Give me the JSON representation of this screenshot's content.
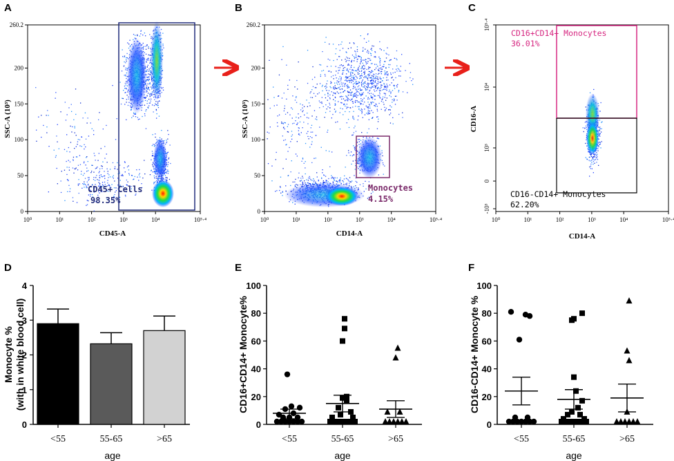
{
  "panels": {
    "A": "A",
    "B": "B",
    "C": "C",
    "D": "D",
    "E": "E",
    "F": "F"
  },
  "colors": {
    "gate_navy": "#1f2a7a",
    "gate_purple": "#7a2a6a",
    "gate_magenta": "#d62680",
    "arrow_red": "#e8201a",
    "bar_lt55": "#000000",
    "bar_55_65": "#5a5a5a",
    "bar_gt65": "#d2d2d2"
  },
  "chart_data": [
    {
      "id": "A",
      "type": "scatter",
      "xlabel": "CD45-A",
      "ylabel_main": "SSC-A",
      "ylabel_unit": "(10³)",
      "x_tick_labels": [
        "10⁰",
        "10¹",
        "10²",
        "10³",
        "10⁴",
        "10⁵·⁴"
      ],
      "y_tick_labels": [
        "0",
        "50",
        "100",
        "150",
        "200",
        "260.2"
      ],
      "y_ticks": [
        0,
        50,
        100,
        150,
        200,
        260.2
      ],
      "gate_label": "CD45+ Cells",
      "gate_percent": "98.35%",
      "gate_log_x_range": [
        2.6,
        4.8
      ],
      "gate_y_range": [
        3,
        260
      ]
    },
    {
      "id": "B",
      "type": "scatter",
      "xlabel": "CD14-A",
      "ylabel_main": "SSC-A",
      "ylabel_unit": "(10³)",
      "x_tick_labels": [
        "10⁰",
        "10¹",
        "10²",
        "10³",
        "10⁴",
        "10⁵·⁴"
      ],
      "y_tick_labels": [
        "0",
        "50",
        "100",
        "150",
        "200",
        "260.2"
      ],
      "y_ticks": [
        0,
        50,
        100,
        150,
        200,
        260.2
      ],
      "gate_label": "Monocytes",
      "gate_percent": "4.15%",
      "gate_log_x_range": [
        2.95,
        3.95
      ],
      "gate_y_range": [
        47,
        105
      ]
    },
    {
      "id": "C",
      "type": "scatter",
      "xlabel": "CD14-A",
      "ylabel_main": "CD16-A",
      "x_tick_labels": [
        "10⁰",
        "10¹",
        "10²",
        "10³",
        "10⁴",
        "10⁵·⁴"
      ],
      "y_tick_labels": [
        "10⁵·⁴",
        "10⁴",
        "10³",
        "0",
        "-10³"
      ],
      "gate_upper_label": "CD16+CD14+ Monocytes",
      "gate_upper_percent": "36.01%",
      "gate_lower_label": "CD16-CD14+ Monocytes",
      "gate_lower_percent": "62.20%"
    },
    {
      "id": "D",
      "type": "bar",
      "categories": [
        "<55",
        "55-65",
        ">65"
      ],
      "values": [
        2.9,
        2.32,
        2.7
      ],
      "errors": [
        0.42,
        0.32,
        0.42
      ],
      "xlabel": "age",
      "ylabel_line1": "Monocyte %",
      "ylabel_line2": "(with in white blood cell)",
      "ylim": [
        0,
        4
      ],
      "y_ticks": [
        0,
        1,
        2,
        3,
        4
      ],
      "y_tick_labels": [
        "0",
        "1",
        "2",
        "3",
        "4"
      ]
    },
    {
      "id": "E",
      "type": "scatter",
      "categories": [
        "<55",
        "55-65",
        ">65"
      ],
      "xlabel": "age",
      "ylabel": "CD16+CD14+ Monocyte%",
      "ylim": [
        0,
        100
      ],
      "y_ticks": [
        0,
        20,
        40,
        60,
        80,
        100
      ],
      "y_tick_labels": [
        "0",
        "20",
        "40",
        "60",
        "80",
        "100"
      ],
      "series": [
        {
          "name": "<55",
          "marker": "circle",
          "mean": 8,
          "sem_low": 4,
          "sem_high": 11,
          "points": [
            [
              -0.3,
              2
            ],
            [
              -0.2,
              2
            ],
            [
              -0.1,
              2
            ],
            [
              0.0,
              2
            ],
            [
              0.1,
              2
            ],
            [
              0.2,
              2
            ],
            [
              0.3,
              2
            ],
            [
              -0.15,
              5
            ],
            [
              0.0,
              5
            ],
            [
              0.2,
              5
            ],
            [
              -0.25,
              7
            ],
            [
              0.1,
              8
            ],
            [
              -0.1,
              11
            ],
            [
              0.25,
              12
            ],
            [
              0.05,
              13
            ],
            [
              -0.05,
              36
            ]
          ]
        },
        {
          "name": "55-65",
          "marker": "square",
          "mean": 15,
          "sem_low": 9,
          "sem_high": 21,
          "points": [
            [
              -0.3,
              2
            ],
            [
              -0.2,
              2
            ],
            [
              -0.1,
              2
            ],
            [
              0.0,
              2
            ],
            [
              0.1,
              2
            ],
            [
              0.2,
              2
            ],
            [
              0.3,
              2
            ],
            [
              -0.25,
              5
            ],
            [
              0.25,
              5
            ],
            [
              -0.05,
              7
            ],
            [
              0.2,
              9
            ],
            [
              -0.1,
              12
            ],
            [
              0.1,
              17
            ],
            [
              0.0,
              19
            ],
            [
              0.1,
              20
            ],
            [
              0.0,
              60
            ],
            [
              0.05,
              69
            ],
            [
              0.05,
              76
            ]
          ]
        },
        {
          "name": ">65",
          "marker": "triangle",
          "mean": 11,
          "sem_low": 5,
          "sem_high": 17,
          "points": [
            [
              -0.25,
              2
            ],
            [
              -0.15,
              2
            ],
            [
              -0.05,
              2
            ],
            [
              0.05,
              2
            ],
            [
              0.15,
              2
            ],
            [
              0.25,
              2
            ],
            [
              -0.2,
              9
            ],
            [
              0.1,
              9
            ],
            [
              0.0,
              48
            ],
            [
              0.05,
              55
            ]
          ]
        }
      ]
    },
    {
      "id": "F",
      "type": "scatter",
      "categories": [
        "<55",
        "55-65",
        ">65"
      ],
      "xlabel": "age",
      "ylabel": "CD16-CD14+ Monocyte %",
      "ylim": [
        0,
        100
      ],
      "y_ticks": [
        0,
        20,
        40,
        60,
        80,
        100
      ],
      "y_tick_labels": [
        "0",
        "20",
        "40",
        "60",
        "80",
        "100"
      ],
      "series": [
        {
          "name": "<55",
          "marker": "circle",
          "mean": 24,
          "sem_low": 14,
          "sem_high": 34,
          "points": [
            [
              -0.3,
              2
            ],
            [
              -0.2,
              2
            ],
            [
              -0.1,
              2
            ],
            [
              0.0,
              2
            ],
            [
              0.1,
              2
            ],
            [
              0.2,
              2
            ],
            [
              0.3,
              2
            ],
            [
              -0.15,
              5
            ],
            [
              0.15,
              5
            ],
            [
              -0.05,
              61
            ],
            [
              0.2,
              78
            ],
            [
              -0.25,
              81
            ],
            [
              0.1,
              79
            ]
          ]
        },
        {
          "name": "55-65",
          "marker": "square",
          "mean": 18,
          "sem_low": 11,
          "sem_high": 25,
          "points": [
            [
              -0.3,
              2
            ],
            [
              -0.2,
              2
            ],
            [
              -0.1,
              2
            ],
            [
              0.0,
              2
            ],
            [
              0.1,
              2
            ],
            [
              0.2,
              2
            ],
            [
              0.3,
              2
            ],
            [
              -0.25,
              4
            ],
            [
              0.25,
              4
            ],
            [
              -0.15,
              7
            ],
            [
              0.15,
              7
            ],
            [
              -0.05,
              9
            ],
            [
              0.1,
              12
            ],
            [
              0.2,
              17
            ],
            [
              0.05,
              24
            ],
            [
              0.0,
              34
            ],
            [
              -0.05,
              75
            ],
            [
              0.0,
              76
            ],
            [
              0.2,
              80
            ]
          ]
        },
        {
          "name": ">65",
          "marker": "triangle",
          "mean": 19,
          "sem_low": 9,
          "sem_high": 29,
          "points": [
            [
              -0.25,
              2
            ],
            [
              -0.15,
              2
            ],
            [
              -0.05,
              2
            ],
            [
              0.05,
              2
            ],
            [
              0.15,
              2
            ],
            [
              0.25,
              2
            ],
            [
              0.0,
              9
            ],
            [
              0.05,
              46
            ],
            [
              0.0,
              53
            ],
            [
              0.05,
              89
            ]
          ]
        }
      ]
    }
  ]
}
